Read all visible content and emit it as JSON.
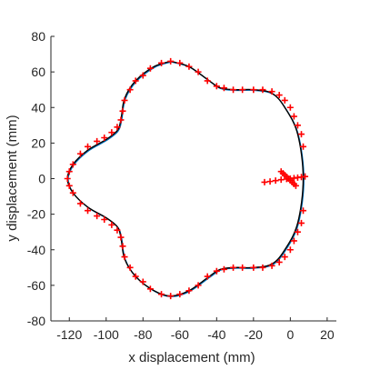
{
  "chart_data": {
    "type": "line",
    "title": "",
    "xlabel": "x displacement (mm)",
    "ylabel": "y displacement (mm)",
    "xlim": [
      -130,
      25
    ],
    "ylim": [
      -80,
      80
    ],
    "xticks": [
      -120,
      -100,
      -80,
      -60,
      -40,
      -20,
      0,
      20
    ],
    "yticks": [
      80,
      60,
      40,
      20,
      0,
      -20,
      -40,
      -60,
      -80
    ],
    "grid": false,
    "legend": "none",
    "colors": {
      "true_path": "#000000",
      "estimate": "#0072bd",
      "markers": "#ff0000",
      "axis": "#262626"
    },
    "series": [
      {
        "style": "black-line",
        "x": [
          -65,
          -74,
          -84,
          -90,
          -92,
          -94,
          -100,
          -110,
          -118,
          -121,
          -118,
          -110,
          -100,
          -94,
          -92,
          -90,
          -84,
          -74,
          -65,
          -55,
          -44,
          -38,
          -30,
          -20,
          -10,
          -3,
          4,
          7,
          4,
          -3,
          -10,
          -20,
          -30,
          -38,
          -44,
          -55,
          -65
        ],
        "y": [
          66,
          63,
          55,
          45,
          33,
          27,
          22,
          16,
          8,
          0,
          -8,
          -16,
          -22,
          -27,
          -33,
          -45,
          -55,
          -63,
          -66,
          -63,
          -55,
          -51,
          -50,
          -50,
          -48,
          -40,
          -25,
          0,
          25,
          40,
          48,
          50,
          50,
          51,
          55,
          63,
          66
        ]
      },
      {
        "style": "red-plus-markers",
        "x": [
          -65,
          -70,
          -76,
          -80,
          -84,
          -87,
          -90,
          -91,
          -92,
          -94,
          -97,
          -101,
          -105,
          -110,
          -114,
          -118,
          -120,
          -121,
          -120,
          -118,
          -114,
          -110,
          -105,
          -101,
          -97,
          -94,
          -92,
          -91,
          -90,
          -87,
          -84,
          -80,
          -76,
          -70,
          -65,
          -60,
          -55,
          -50,
          -45,
          -40,
          -36,
          -31,
          -26,
          -20,
          -15,
          -10,
          -6,
          -3,
          0,
          2,
          4,
          6,
          7,
          7,
          6,
          4,
          2,
          0,
          -3,
          -6,
          -10,
          -15,
          -20,
          -26,
          -31,
          -36,
          -40,
          -45,
          -50,
          -55,
          -60
        ],
        "y": [
          66,
          65,
          62,
          58,
          55,
          50,
          44,
          38,
          33,
          29,
          26,
          23,
          21,
          18,
          14,
          8,
          4,
          0,
          -4,
          -8,
          -14,
          -18,
          -21,
          -23,
          -26,
          -29,
          -33,
          -38,
          -44,
          -50,
          -55,
          -58,
          -62,
          -65,
          -66,
          -65,
          -63,
          -60,
          -55,
          -52,
          -51,
          -50,
          -50,
          -50,
          -50,
          -49,
          -47,
          -44,
          -40,
          -35,
          -30,
          -25,
          -18,
          18,
          25,
          30,
          35,
          40,
          44,
          47,
          49,
          50,
          50,
          50,
          50,
          51,
          52,
          55,
          60,
          63,
          65
        ]
      },
      {
        "style": "red-plus-markers",
        "x": [
          -14,
          -11,
          -8,
          -5,
          -2,
          0,
          2,
          4,
          6,
          8
        ],
        "y": [
          -2,
          -1.6,
          -1.1,
          -0.6,
          -0.2,
          0,
          0.3,
          0.6,
          0.9,
          1.2
        ]
      },
      {
        "style": "red-plus-markers",
        "x": [
          -5,
          -4,
          -3,
          -2,
          -1,
          0,
          1,
          2,
          3
        ],
        "y": [
          4,
          3,
          2,
          1,
          0,
          -1,
          -2,
          -3,
          -4
        ]
      }
    ]
  }
}
